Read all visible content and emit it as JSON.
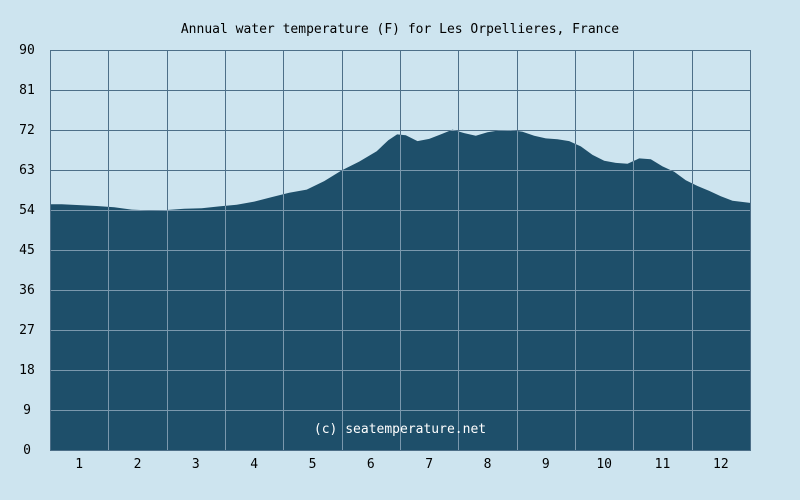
{
  "chart_data": {
    "type": "area",
    "title": "Annual water temperature (F) for Les Orpellieres, France",
    "xlabel": "",
    "ylabel": "",
    "x_ticks": [
      "1",
      "2",
      "3",
      "4",
      "5",
      "6",
      "7",
      "8",
      "9",
      "10",
      "11",
      "12"
    ],
    "y_ticks": [
      0,
      9,
      18,
      27,
      36,
      45,
      54,
      63,
      72,
      81,
      90
    ],
    "xlim": [
      0.5,
      12.5
    ],
    "ylim": [
      0,
      90
    ],
    "grid": true,
    "legend": "none",
    "watermark": "(c) seatemperature.net",
    "colors": {
      "background": "#cde4ef",
      "fill": "#1e4f6a",
      "grid_on_background": "#4d6f88",
      "grid_on_fill": "#7a98ad",
      "axis": "#4d6f88"
    },
    "series": [
      {
        "x": [
          0.5,
          0.7,
          1.0,
          1.3,
          1.6,
          1.9,
          2.2,
          2.5,
          2.8,
          3.1,
          3.4,
          3.7,
          4.0,
          4.3,
          4.6,
          4.9,
          5.2,
          5.5,
          5.8,
          6.1,
          6.3,
          6.45,
          6.6,
          6.8,
          7.0,
          7.2,
          7.4,
          7.6,
          7.8,
          8.0,
          8.2,
          8.4,
          8.6,
          8.8,
          9.0,
          9.2,
          9.4,
          9.6,
          9.8,
          10.0,
          10.2,
          10.4,
          10.6,
          10.8,
          11.0,
          11.2,
          11.4,
          11.6,
          11.8,
          12.0,
          12.2,
          12.5
        ],
        "values": [
          55.3,
          55.3,
          55.1,
          54.9,
          54.6,
          54.1,
          53.9,
          54.0,
          54.3,
          54.4,
          54.8,
          55.2,
          55.9,
          56.9,
          57.9,
          58.6,
          60.5,
          62.9,
          64.9,
          67.2,
          69.7,
          71.0,
          70.8,
          69.5,
          70.0,
          71.0,
          72.1,
          71.3,
          70.7,
          71.5,
          71.9,
          72.0,
          71.6,
          70.7,
          70.1,
          69.9,
          69.5,
          68.3,
          66.4,
          65.1,
          64.6,
          64.4,
          65.6,
          65.4,
          63.8,
          62.6,
          60.7,
          59.4,
          58.3,
          57.1,
          56.1,
          55.6
        ]
      }
    ]
  }
}
